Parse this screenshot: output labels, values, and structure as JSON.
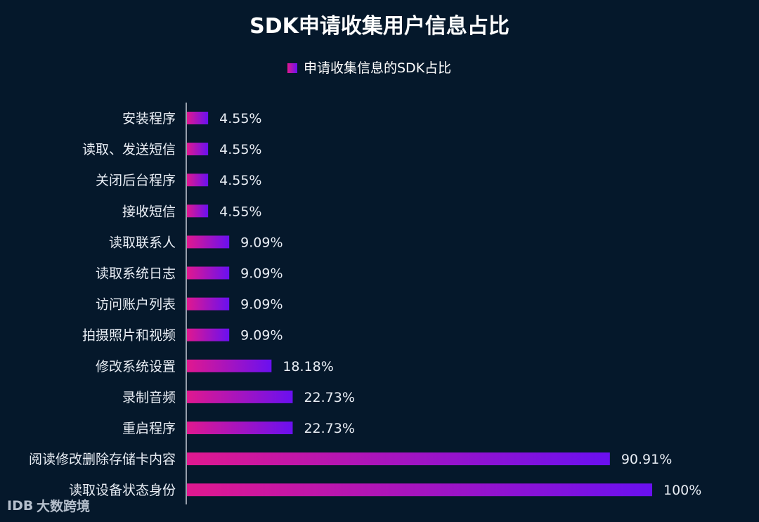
{
  "chart_data": {
    "type": "bar",
    "orientation": "horizontal",
    "title": "SDK申请收集用户信息占比",
    "legend": {
      "position": "top-center",
      "entries": [
        "申请收集信息的SDK占比"
      ]
    },
    "categories": [
      "安装程序",
      "读取、发送短信",
      "关闭后台程序",
      "接收短信",
      "读取联系人",
      "读取系统日志",
      "访问账户列表",
      "拍摄照片和视频",
      "修改系统设置",
      "录制音频",
      "重启程序",
      "阅读修改删除存储卡内容",
      "读取设备状态身份"
    ],
    "series": [
      {
        "name": "申请收集信息的SDK占比",
        "values": [
          4.55,
          4.55,
          4.55,
          4.55,
          9.09,
          9.09,
          9.09,
          9.09,
          18.18,
          22.73,
          22.73,
          90.91,
          100
        ],
        "labels": [
          "4.55%",
          "4.55%",
          "4.55%",
          "4.55%",
          "9.09%",
          "9.09%",
          "9.09%",
          "9.09%",
          "18.18%",
          "22.73%",
          "22.73%",
          "90.91%",
          "100%"
        ]
      }
    ],
    "xlim": [
      0,
      100
    ],
    "grid": false,
    "colors": {
      "background": "#05182b",
      "bar_start": "#e0188f",
      "bar_end": "#6a10f0",
      "axis": "#c8ced8"
    }
  },
  "watermark": {
    "logo_text": "IDB",
    "text": "大数跨境"
  }
}
